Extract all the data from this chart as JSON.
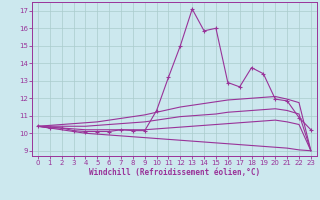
{
  "bg_color": "#cce8ee",
  "line_color": "#993399",
  "xlabel": "Windchill (Refroidissement éolien,°C)",
  "xlim": [
    -0.5,
    23.5
  ],
  "ylim": [
    8.7,
    17.5
  ],
  "yticks": [
    9,
    10,
    11,
    12,
    13,
    14,
    15,
    16,
    17
  ],
  "xticks": [
    0,
    1,
    2,
    3,
    4,
    5,
    6,
    7,
    8,
    9,
    10,
    11,
    12,
    13,
    14,
    15,
    16,
    17,
    18,
    19,
    20,
    21,
    22,
    23
  ],
  "x": [
    0,
    1,
    2,
    3,
    4,
    5,
    6,
    7,
    8,
    9,
    10,
    11,
    12,
    13,
    14,
    15,
    16,
    17,
    18,
    19,
    20,
    21,
    22,
    23
  ],
  "line_main": [
    10.4,
    10.3,
    10.3,
    10.15,
    10.1,
    10.1,
    10.1,
    10.2,
    10.15,
    10.15,
    11.3,
    13.2,
    15.0,
    17.1,
    15.85,
    16.0,
    12.9,
    12.65,
    13.75,
    13.4,
    11.95,
    11.85,
    10.9,
    10.2
  ],
  "line_max": [
    10.4,
    10.45,
    10.5,
    10.55,
    10.6,
    10.65,
    10.75,
    10.85,
    10.95,
    11.05,
    11.2,
    11.35,
    11.5,
    11.6,
    11.7,
    11.8,
    11.9,
    11.95,
    12.0,
    12.05,
    12.1,
    11.95,
    11.75,
    9.0
  ],
  "line_mid1": [
    10.4,
    10.4,
    10.4,
    10.4,
    10.4,
    10.45,
    10.5,
    10.55,
    10.6,
    10.65,
    10.75,
    10.85,
    10.95,
    11.0,
    11.05,
    11.1,
    11.2,
    11.25,
    11.3,
    11.35,
    11.4,
    11.3,
    11.1,
    9.0
  ],
  "line_mid2": [
    10.4,
    10.35,
    10.3,
    10.25,
    10.2,
    10.2,
    10.2,
    10.2,
    10.2,
    10.2,
    10.25,
    10.3,
    10.35,
    10.4,
    10.45,
    10.5,
    10.55,
    10.6,
    10.65,
    10.7,
    10.75,
    10.65,
    10.5,
    9.0
  ],
  "line_min": [
    10.4,
    10.3,
    10.2,
    10.1,
    10.0,
    9.95,
    9.9,
    9.85,
    9.8,
    9.75,
    9.7,
    9.65,
    9.6,
    9.55,
    9.5,
    9.45,
    9.4,
    9.35,
    9.3,
    9.25,
    9.2,
    9.15,
    9.05,
    9.0
  ]
}
